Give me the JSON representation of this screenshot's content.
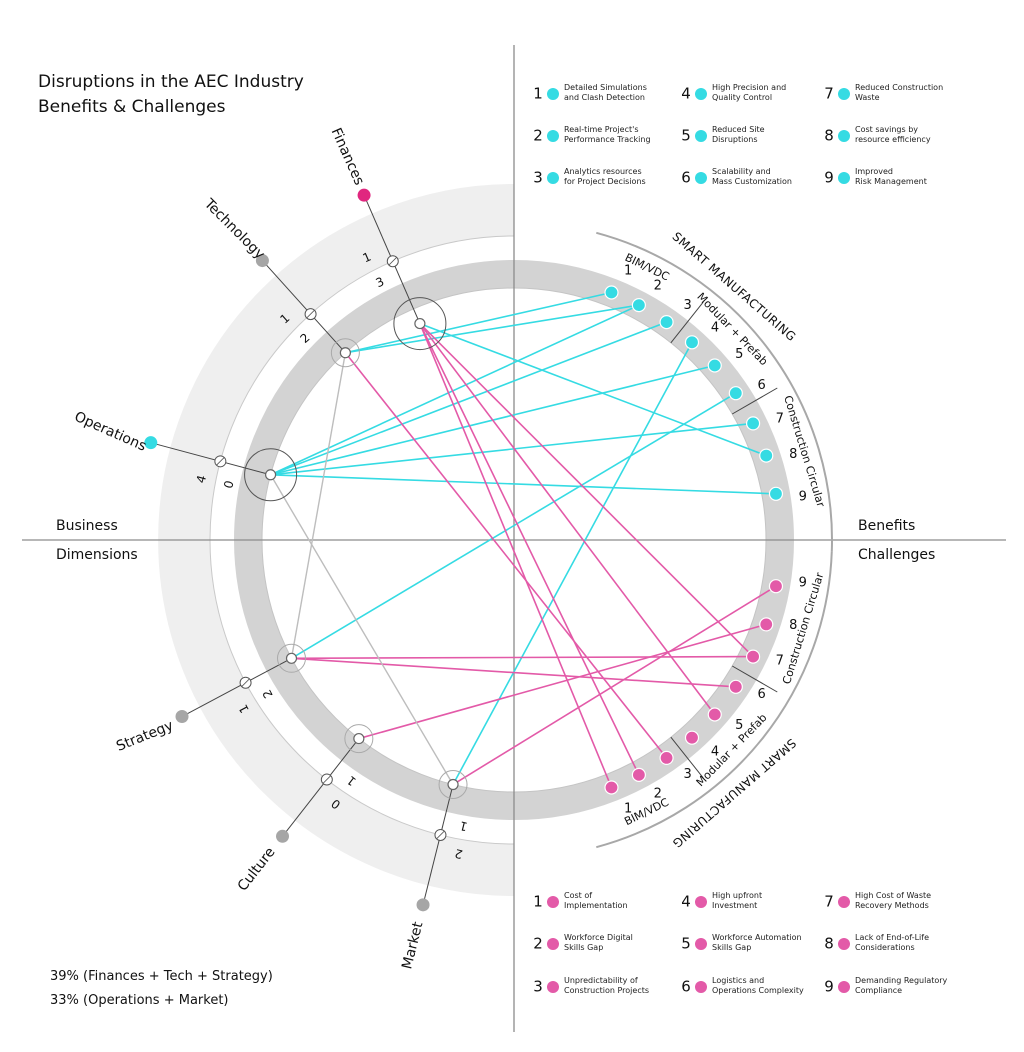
{
  "title": [
    "Disruptions in the AEC Industry",
    "Benefits & Challenges"
  ],
  "quadrants": {
    "business": "Business",
    "dimensions": "Dimensions",
    "benefits": "Benefits",
    "challenges": "Challenges"
  },
  "colors": {
    "benefit": "#35dbe3",
    "challenge": "#e35aa8",
    "finance": "#e0277f",
    "neutral": "#a6a6a6",
    "ring_inner": "#d3d3d3",
    "ring_outer": "#efefef"
  },
  "dimensions": [
    {
      "name": "Finances",
      "color": "#e0277f",
      "scores": [
        "1",
        "3"
      ]
    },
    {
      "name": "Technology",
      "color": "#a6a6a6",
      "scores": [
        "1",
        "2"
      ]
    },
    {
      "name": "Operations",
      "color": "#35dbe3",
      "scores": [
        "4",
        "0"
      ]
    },
    {
      "name": "Strategy",
      "color": "#a6a6a6",
      "scores": [
        "1",
        "2"
      ]
    },
    {
      "name": "Culture",
      "color": "#a6a6a6",
      "scores": [
        "0",
        "1"
      ]
    },
    {
      "name": "Market",
      "color": "#a6a6a6",
      "scores": [
        "2",
        "1"
      ]
    }
  ],
  "benefit_sections": [
    "BIM/VDC",
    "Modular + Prefab",
    "Construction Circular"
  ],
  "benefit_group_label": "SMART MANUFACTURING",
  "challenge_sections": [
    "BIM/VDC",
    "Modular + Prefab",
    "Construction Circular"
  ],
  "challenge_group_label": "SMART MANUFACTURING",
  "slot_numbers": [
    "1",
    "2",
    "3",
    "4",
    "5",
    "6",
    "7",
    "8",
    "9"
  ],
  "benefits": [
    {
      "num": "1",
      "lines": [
        "Detailed Simulations",
        "and Clash Detection"
      ]
    },
    {
      "num": "2",
      "lines": [
        "Real-time Project's",
        "Performance Tracking"
      ]
    },
    {
      "num": "3",
      "lines": [
        "Analytics resources",
        "for Project Decisions"
      ]
    },
    {
      "num": "4",
      "lines": [
        "High Precision and",
        "Quality Control"
      ]
    },
    {
      "num": "5",
      "lines": [
        "Reduced Site",
        "Disruptions"
      ]
    },
    {
      "num": "6",
      "lines": [
        "Scalability and",
        "Mass Customization"
      ]
    },
    {
      "num": "7",
      "lines": [
        "Reduced Construction",
        "Waste"
      ]
    },
    {
      "num": "8",
      "lines": [
        "Cost savings by",
        "resource efficiency"
      ]
    },
    {
      "num": "9",
      "lines": [
        "Improved",
        "Risk Management"
      ]
    }
  ],
  "challenges": [
    {
      "num": "1",
      "lines": [
        "Cost of",
        "Implementation"
      ]
    },
    {
      "num": "2",
      "lines": [
        "Workforce Digital",
        "Skills Gap"
      ]
    },
    {
      "num": "3",
      "lines": [
        "Unpredictability of",
        "Construction Projects"
      ]
    },
    {
      "num": "4",
      "lines": [
        "High upfront",
        "Investment"
      ]
    },
    {
      "num": "5",
      "lines": [
        "Workforce Automation",
        "Skills Gap"
      ]
    },
    {
      "num": "6",
      "lines": [
        "Logistics and",
        "Operations Complexity"
      ]
    },
    {
      "num": "7",
      "lines": [
        "High Cost of Waste",
        "Recovery Methods"
      ]
    },
    {
      "num": "8",
      "lines": [
        "Lack of End-of-Life",
        "Considerations"
      ]
    },
    {
      "num": "9",
      "lines": [
        "Demanding Regulatory",
        "Compliance"
      ]
    }
  ],
  "connections": {
    "benefit": [
      {
        "from": "Technology",
        "to": 1
      },
      {
        "from": "Technology",
        "to": 2
      },
      {
        "from": "Finances",
        "to": 8
      },
      {
        "from": "Operations",
        "to": 2
      },
      {
        "from": "Operations",
        "to": 3
      },
      {
        "from": "Operations",
        "to": 5
      },
      {
        "from": "Operations",
        "to": 7
      },
      {
        "from": "Operations",
        "to": 9
      },
      {
        "from": "Strategy",
        "to": 6
      },
      {
        "from": "Market",
        "to": 4
      }
    ],
    "challenge": [
      {
        "from": "Finances",
        "to": 1
      },
      {
        "from": "Finances",
        "to": 2
      },
      {
        "from": "Finances",
        "to": 5
      },
      {
        "from": "Finances",
        "to": 7
      },
      {
        "from": "Technology",
        "to": 3
      },
      {
        "from": "Strategy",
        "to": 6
      },
      {
        "from": "Strategy",
        "to": 7
      },
      {
        "from": "Culture",
        "to": 8
      },
      {
        "from": "Market",
        "to": 9
      }
    ],
    "neutral": [
      {
        "from": "Technology",
        "to": "Strategy"
      },
      {
        "from": "Operations",
        "to": "Market"
      }
    ]
  },
  "footer": [
    "39% (Finances + Tech + Strategy)",
    "33% (Operations + Market)"
  ]
}
